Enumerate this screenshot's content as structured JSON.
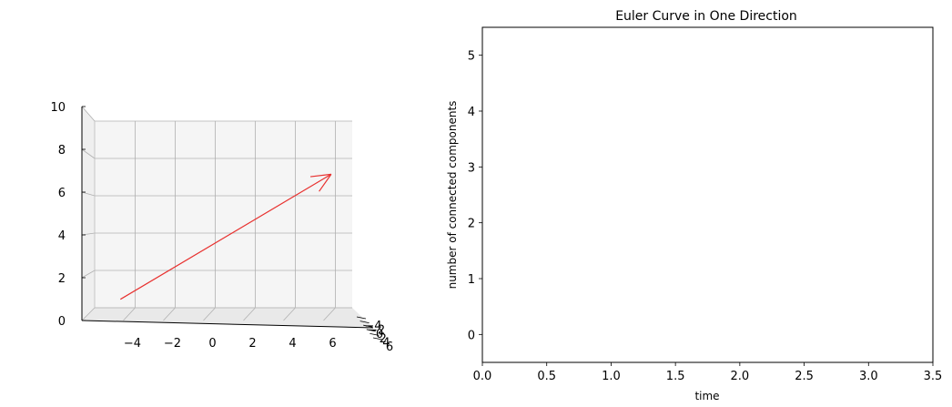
{
  "chart_data": [
    {
      "type": "3d-quiver",
      "title": "",
      "xlabel": "",
      "ylabel": "",
      "zlabel": "",
      "x_ticks": [
        -4,
        -2,
        0,
        2,
        4,
        6
      ],
      "z_ticks": [
        0,
        2,
        4,
        6,
        8,
        10
      ],
      "y_ticks": [
        -4,
        -2,
        0,
        2,
        4,
        6
      ],
      "y_tick_labels": [
        "−4",
        "−2",
        "0",
        "2",
        "4",
        "6"
      ],
      "xlim": [
        -6,
        6
      ],
      "zlim": [
        0,
        10
      ],
      "grid": true,
      "view": "side, nearly edge-on elevation",
      "arrow": {
        "color": "#e8312f",
        "start": {
          "x": -4.6,
          "z": 0.6
        },
        "end": {
          "x": 5.2,
          "z": 7.2
        }
      }
    },
    {
      "type": "line",
      "title": "Euler Curve in One Direction",
      "xlabel": "time",
      "ylabel": "number of connected components",
      "xlim": [
        0,
        3.5
      ],
      "ylim": [
        -0.5,
        5.5
      ],
      "x_ticks": [
        "0.0",
        "0.5",
        "1.0",
        "1.5",
        "2.0",
        "2.5",
        "3.0",
        "3.5"
      ],
      "y_ticks": [
        "0",
        "1",
        "2",
        "3",
        "4",
        "5"
      ],
      "series": [],
      "grid": false
    }
  ]
}
